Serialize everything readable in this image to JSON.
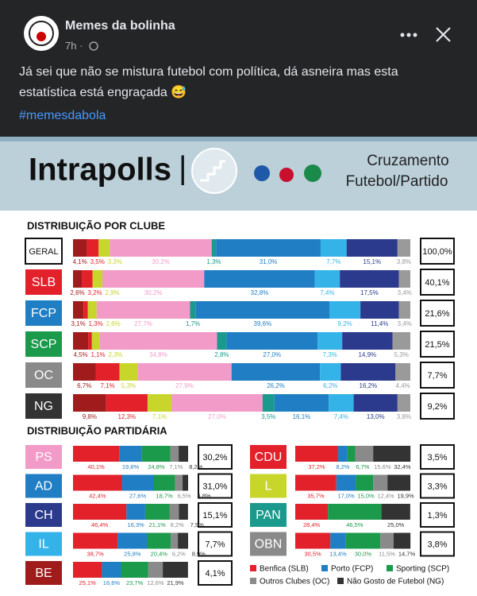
{
  "post": {
    "author": "Memes da bolinha",
    "time": "7h ·",
    "text": "Já sei que não se mistura futebol com política, dá asneira mas esta estatística está engraçada 😅",
    "hashtag": "#memesdabola"
  },
  "header": {
    "brand": "Intrapolls",
    "separator": "|",
    "subtitle_line1": "Cruzamento",
    "subtitle_line2": "Futebol/Partido"
  },
  "chart_data": [
    {
      "type": "bar",
      "stacked": true,
      "orientation": "horizontal",
      "title": "DISTRIBUIÇÃO POR CLUBE",
      "categories": [
        "GERAL",
        "SLB",
        "FCP",
        "SCP",
        "OC",
        "NG"
      ],
      "category_colors": [
        "#ffffff",
        "#e3212b",
        "#1f7ec4",
        "#1a9a4a",
        "#8a8a8a",
        "#333333"
      ],
      "share_labels": [
        "100,0%",
        "40,1%",
        "21,6%",
        "21,5%",
        "7,7%",
        "9,2%"
      ],
      "xlim": [
        0,
        100
      ],
      "series": [
        {
          "color": "#a01c1c",
          "values": [
            4.1,
            2.6,
            3.1,
            4.5,
            6.7,
            9.8
          ],
          "value_labels": [
            "4,1%",
            "2,6%",
            "3,1%",
            "4,5%",
            "6,7%",
            "9,8%"
          ]
        },
        {
          "color": "#e3212b",
          "values": [
            3.5,
            3.2,
            1.3,
            1.1,
            7.1,
            12.3
          ],
          "value_labels": [
            "3,5%",
            "3,2%",
            "1,3%",
            "1,1%",
            "7,1%",
            "12,3%"
          ]
        },
        {
          "color": "#c8d62b",
          "values": [
            3.3,
            2.9,
            2.6,
            2.3,
            5.3,
            7.1
          ],
          "value_labels": [
            "3,3%",
            "2,9%",
            "2,6%",
            "2,3%",
            "5,3%",
            "7,1%"
          ]
        },
        {
          "color": "#f29bc9",
          "values": [
            30.2,
            30.2,
            27.7,
            34.8,
            27.9,
            27.0
          ],
          "value_labels": [
            "30,2%",
            "30,2%",
            "27,7%",
            "34,8%",
            "27,9%",
            "27,0%"
          ]
        },
        {
          "color": "#1a9a8c",
          "values": [
            1.3,
            null,
            1.7,
            2.8,
            null,
            3.5
          ],
          "value_labels": [
            "1,3%",
            null,
            "1,7%",
            "2,8%",
            null,
            "3,5%"
          ]
        },
        {
          "color": "#1f7ec4",
          "values": [
            31.0,
            32.8,
            39.6,
            27.0,
            26.2,
            16.1
          ],
          "value_labels": [
            "31,0%",
            "32,8%",
            "39,6%",
            "27,0%",
            "26,2%",
            "16,1%"
          ]
        },
        {
          "color": "#34b3e8",
          "values": [
            7.7,
            7.4,
            9.2,
            7.3,
            6.2,
            7.4
          ],
          "value_labels": [
            "7,7%",
            "7,4%",
            "9,2%",
            "7,3%",
            "6,2%",
            "7,4%"
          ]
        },
        {
          "color": "#2b3a8c",
          "values": [
            15.1,
            17.5,
            11.4,
            14.9,
            16.2,
            13.0
          ],
          "value_labels": [
            "15,1%",
            "17,5%",
            "11,4%",
            "14,9%",
            "16,2%",
            "13,0%"
          ]
        },
        {
          "color": "#9a9a9a",
          "values": [
            3.8,
            3.4,
            3.4,
            5.3,
            4.4,
            3.8
          ],
          "value_labels": [
            "3,8%",
            "3,4%",
            "3,4%",
            "5,3%",
            "4,4%",
            "3,8%"
          ]
        }
      ]
    },
    {
      "type": "bar",
      "stacked": true,
      "orientation": "horizontal",
      "title": "DISTRIBUIÇÃO PARTIDÁRIA",
      "categories": [
        "PS",
        "AD",
        "CH",
        "IL",
        "BE",
        "CDU",
        "L",
        "PAN",
        "OBN"
      ],
      "category_colors": [
        "#f29bc9",
        "#1f7ec4",
        "#2b3a8c",
        "#34b3e8",
        "#a01c1c",
        "#e3212b",
        "#c8d62b",
        "#1a9a8c",
        "#8a8a8a"
      ],
      "share_labels": [
        "30,2%",
        "31,0%",
        "15,1%",
        "7,7%",
        "4,1%",
        "3,5%",
        "3,3%",
        "1,3%",
        "3,8%"
      ],
      "xlim": [
        0,
        100
      ],
      "series": [
        {
          "name": "Benfica (SLB)",
          "color": "#e3212b",
          "values": [
            40.1,
            42.4,
            46.4,
            38.7,
            25.1,
            37.2,
            35.7,
            28.4,
            30.5
          ],
          "value_labels": [
            "40,1%",
            "42,4%",
            "46,4%",
            "38,7%",
            "25,1%",
            "37,2%",
            "35,7%",
            "28,4%",
            "30,5%"
          ]
        },
        {
          "name": "Porto (FCP)",
          "color": "#1f7ec4",
          "values": [
            19.8,
            27.6,
            16.3,
            25.8,
            16.6,
            8.2,
            17.0,
            null,
            13.4
          ],
          "value_labels": [
            "19,8%",
            "27,6%",
            "16,3%",
            "25,8%",
            "16,6%",
            "8,2%",
            "17,0%",
            null,
            "13,4%"
          ]
        },
        {
          "name": "Sporting (SCP)",
          "color": "#1a9a4a",
          "values": [
            24.8,
            18.7,
            21.1,
            20.4,
            23.7,
            6.7,
            15.0,
            46.5,
            30.0
          ],
          "value_labels": [
            "24,8%",
            "18,7%",
            "21,1%",
            "20,4%",
            "23,7%",
            "6,7%",
            "15,0%",
            "46,5%",
            "30,0%"
          ]
        },
        {
          "name": "Outros Clubes (OC)",
          "color": "#8a8a8a",
          "values": [
            7.1,
            6.5,
            8.2,
            6.2,
            12.6,
            15.6,
            12.4,
            null,
            11.5
          ],
          "value_labels": [
            "7,1%",
            "6,5%",
            "8,2%",
            "6,2%",
            "12,6%",
            "15,6%",
            "12,4%",
            null,
            "11,5%"
          ]
        },
        {
          "name": "Não Gosto de Futebol (NG)",
          "color": "#333333",
          "values": [
            8.2,
            4.8,
            7.9,
            8.9,
            21.9,
            32.4,
            19.9,
            25.0,
            14.7
          ],
          "value_labels": [
            "8,2%",
            "4,8%",
            "7,9%",
            "8,9%",
            "21,9%",
            "32,4%",
            "19,9%",
            "25,0%",
            "14,7%"
          ]
        }
      ]
    }
  ]
}
